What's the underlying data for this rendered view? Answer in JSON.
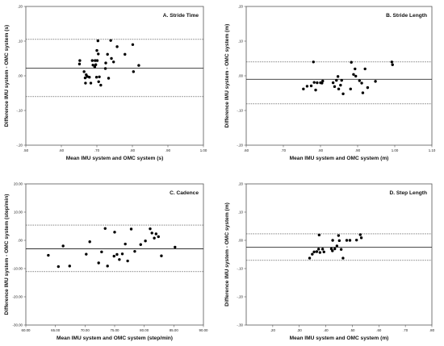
{
  "chart_data": [
    {
      "type": "scatter",
      "title": "A. Stride Time",
      "xlabel": "Mean IMU system and OMC system (s)",
      "ylabel": "Difference IMU system - OMC system (s)",
      "xlim": [
        0.5,
        1.0
      ],
      "ylim": [
        -0.2,
        0.2
      ],
      "xticks": [
        0.5,
        0.6,
        0.7,
        0.8,
        0.9,
        1.0
      ],
      "xticklabels": [
        ".50",
        ".60",
        ".70",
        ".80",
        ".90",
        "1.00"
      ],
      "yticks": [
        -0.2,
        -0.1,
        0.0,
        0.1,
        0.2
      ],
      "yticklabels": [
        "-.20",
        "-.10",
        ".00",
        ".10",
        ".20"
      ],
      "reference_lines": {
        "mean": 0.022,
        "upper_loa": 0.105,
        "lower_loa": -0.06
      },
      "grid": false,
      "points": [
        [
          0.652,
          0.044
        ],
        [
          0.651,
          0.034
        ],
        [
          0.664,
          0.012
        ],
        [
          0.67,
          0.003
        ],
        [
          0.673,
          -0.002
        ],
        [
          0.667,
          -0.006
        ],
        [
          0.679,
          -0.004
        ],
        [
          0.668,
          -0.021
        ],
        [
          0.683,
          -0.021
        ],
        [
          0.689,
          0.031
        ],
        [
          0.687,
          0.044
        ],
        [
          0.695,
          0.044
        ],
        [
          0.701,
          0.044
        ],
        [
          0.697,
          0.032
        ],
        [
          0.694,
          0.026
        ],
        [
          0.704,
          0.063
        ],
        [
          0.7,
          0.073
        ],
        [
          0.703,
          0.101
        ],
        [
          0.699,
          -0.004
        ],
        [
          0.707,
          -0.003
        ],
        [
          0.705,
          -0.017
        ],
        [
          0.711,
          -0.027
        ],
        [
          0.725,
          0.037
        ],
        [
          0.73,
          0.062
        ],
        [
          0.724,
          0.021
        ],
        [
          0.733,
          -0.007
        ],
        [
          0.739,
          0.102
        ],
        [
          0.741,
          0.05
        ],
        [
          0.747,
          0.04
        ],
        [
          0.757,
          0.084
        ],
        [
          0.779,
          0.062
        ],
        [
          0.801,
          0.09
        ],
        [
          0.803,
          0.012
        ],
        [
          0.818,
          0.03
        ]
      ]
    },
    {
      "type": "scatter",
      "title": "B. Stride Length",
      "xlabel": "Mean IMU system and OMC system (m)",
      "ylabel": "Difference IMU system - OMC system (m)",
      "xlim": [
        0.6,
        1.1
      ],
      "ylim": [
        -0.2,
        0.2
      ],
      "xticks": [
        0.6,
        0.7,
        0.8,
        0.9,
        1.0,
        1.1
      ],
      "xticklabels": [
        ".60",
        ".70",
        ".80",
        ".90",
        "1.00",
        "1.10"
      ],
      "yticks": [
        -0.2,
        -0.1,
        0.0,
        0.1,
        0.2
      ],
      "yticklabels": [
        "-.20",
        "-.10",
        ".00",
        ".10",
        ".20"
      ],
      "reference_lines": {
        "mean": -0.01,
        "upper_loa": 0.04,
        "lower_loa": -0.081
      },
      "grid": false,
      "points": [
        [
          0.754,
          -0.038
        ],
        [
          0.764,
          -0.03
        ],
        [
          0.775,
          -0.029
        ],
        [
          0.781,
          0.04
        ],
        [
          0.783,
          -0.019
        ],
        [
          0.787,
          -0.041
        ],
        [
          0.791,
          -0.02
        ],
        [
          0.8,
          -0.02
        ],
        [
          0.804,
          -0.021
        ],
        [
          0.806,
          -0.015
        ],
        [
          0.834,
          -0.02
        ],
        [
          0.838,
          -0.031
        ],
        [
          0.843,
          -0.013
        ],
        [
          0.847,
          -0.002
        ],
        [
          0.849,
          -0.038
        ],
        [
          0.854,
          -0.027
        ],
        [
          0.857,
          -0.013
        ],
        [
          0.861,
          -0.052
        ],
        [
          0.881,
          -0.038
        ],
        [
          0.883,
          0.039
        ],
        [
          0.889,
          0.004
        ],
        [
          0.893,
          0.02
        ],
        [
          0.895,
          -0.001
        ],
        [
          0.905,
          -0.014
        ],
        [
          0.911,
          -0.021
        ],
        [
          0.914,
          -0.049
        ],
        [
          0.92,
          0.02
        ],
        [
          0.927,
          -0.034
        ],
        [
          0.948,
          -0.016
        ],
        [
          0.992,
          0.04
        ],
        [
          0.994,
          0.032
        ]
      ]
    },
    {
      "type": "scatter",
      "title": "C. Cadence",
      "xlabel": "Mean IMU system and OMC system (step/min)",
      "ylabel": "Difference IMU system - OMC system (step/min)",
      "xlim": [
        60,
        90
      ],
      "ylim": [
        -30,
        20
      ],
      "xticks": [
        60,
        65,
        70,
        75,
        80,
        85,
        90
      ],
      "xticklabels": [
        "60.00",
        "65.00",
        "70.00",
        "75.00",
        "80.00",
        "85.00",
        "90.00"
      ],
      "yticks": [
        -30,
        -20,
        -10,
        0,
        10,
        20
      ],
      "yticklabels": [
        "-30.00",
        "-20.00",
        "-10.00",
        ".00",
        "10.00",
        "20.00"
      ],
      "reference_lines": {
        "mean": -3.0,
        "upper_loa": 5.4,
        "lower_loa": -11.1
      },
      "grid": false,
      "points": [
        [
          63.8,
          -5.3
        ],
        [
          65.5,
          -9.3
        ],
        [
          66.3,
          -2.0
        ],
        [
          67.4,
          -9.1
        ],
        [
          70.2,
          -4.9
        ],
        [
          70.8,
          -0.5
        ],
        [
          72.3,
          -8.0
        ],
        [
          72.8,
          -4.1
        ],
        [
          73.4,
          4.2
        ],
        [
          73.8,
          -9.1
        ],
        [
          75.0,
          2.9
        ],
        [
          74.9,
          -5.6
        ],
        [
          75.4,
          -5.0
        ],
        [
          75.8,
          -6.8
        ],
        [
          76.3,
          -4.8
        ],
        [
          76.8,
          -1.3
        ],
        [
          77.2,
          -7.3
        ],
        [
          77.8,
          4.0
        ],
        [
          78.4,
          -3.9
        ],
        [
          79.4,
          -1.5
        ],
        [
          80.2,
          -0.2
        ],
        [
          81.0,
          4.1
        ],
        [
          81.3,
          2.6
        ],
        [
          81.7,
          0.8
        ],
        [
          82.0,
          2.3
        ],
        [
          82.4,
          1.3
        ],
        [
          82.9,
          -5.5
        ],
        [
          85.2,
          -2.4
        ]
      ]
    },
    {
      "type": "scatter",
      "title": "D. Step Length",
      "xlabel": "Mean IMU system and OMC system (m)",
      "ylabel": "Difference IMU system - OMC system (m)",
      "xlim": [
        0.1,
        0.8
      ],
      "ylim": [
        -0.3,
        0.2
      ],
      "xticks": [
        0.2,
        0.3,
        0.4,
        0.5,
        0.6,
        0.7,
        0.8
      ],
      "xticklabels": [
        ".20",
        ".30",
        ".40",
        ".50",
        ".60",
        ".70",
        ".80"
      ],
      "yticks": [
        -0.3,
        -0.2,
        -0.1,
        0.0,
        0.1,
        0.2
      ],
      "yticklabels": [
        "-.30",
        "-.20",
        "-.10",
        ".00",
        ".10",
        ".20"
      ],
      "reference_lines": {
        "mean": -0.024,
        "upper_loa": 0.023,
        "lower_loa": -0.071
      },
      "grid": false,
      "points": [
        [
          0.339,
          -0.063
        ],
        [
          0.349,
          -0.049
        ],
        [
          0.356,
          -0.041
        ],
        [
          0.366,
          -0.04
        ],
        [
          0.373,
          -0.031
        ],
        [
          0.375,
          0.019
        ],
        [
          0.378,
          -0.043
        ],
        [
          0.388,
          -0.031
        ],
        [
          0.393,
          -0.041
        ],
        [
          0.421,
          -0.03
        ],
        [
          0.425,
          -0.037
        ],
        [
          0.426,
          0.0
        ],
        [
          0.434,
          -0.03
        ],
        [
          0.442,
          -0.02
        ],
        [
          0.448,
          0.017
        ],
        [
          0.451,
          -0.001
        ],
        [
          0.458,
          -0.032
        ],
        [
          0.465,
          -0.063
        ],
        [
          0.479,
          0.0
        ],
        [
          0.491,
          0.0
        ],
        [
          0.516,
          0.001
        ],
        [
          0.53,
          0.02
        ],
        [
          0.534,
          0.009
        ]
      ]
    }
  ]
}
